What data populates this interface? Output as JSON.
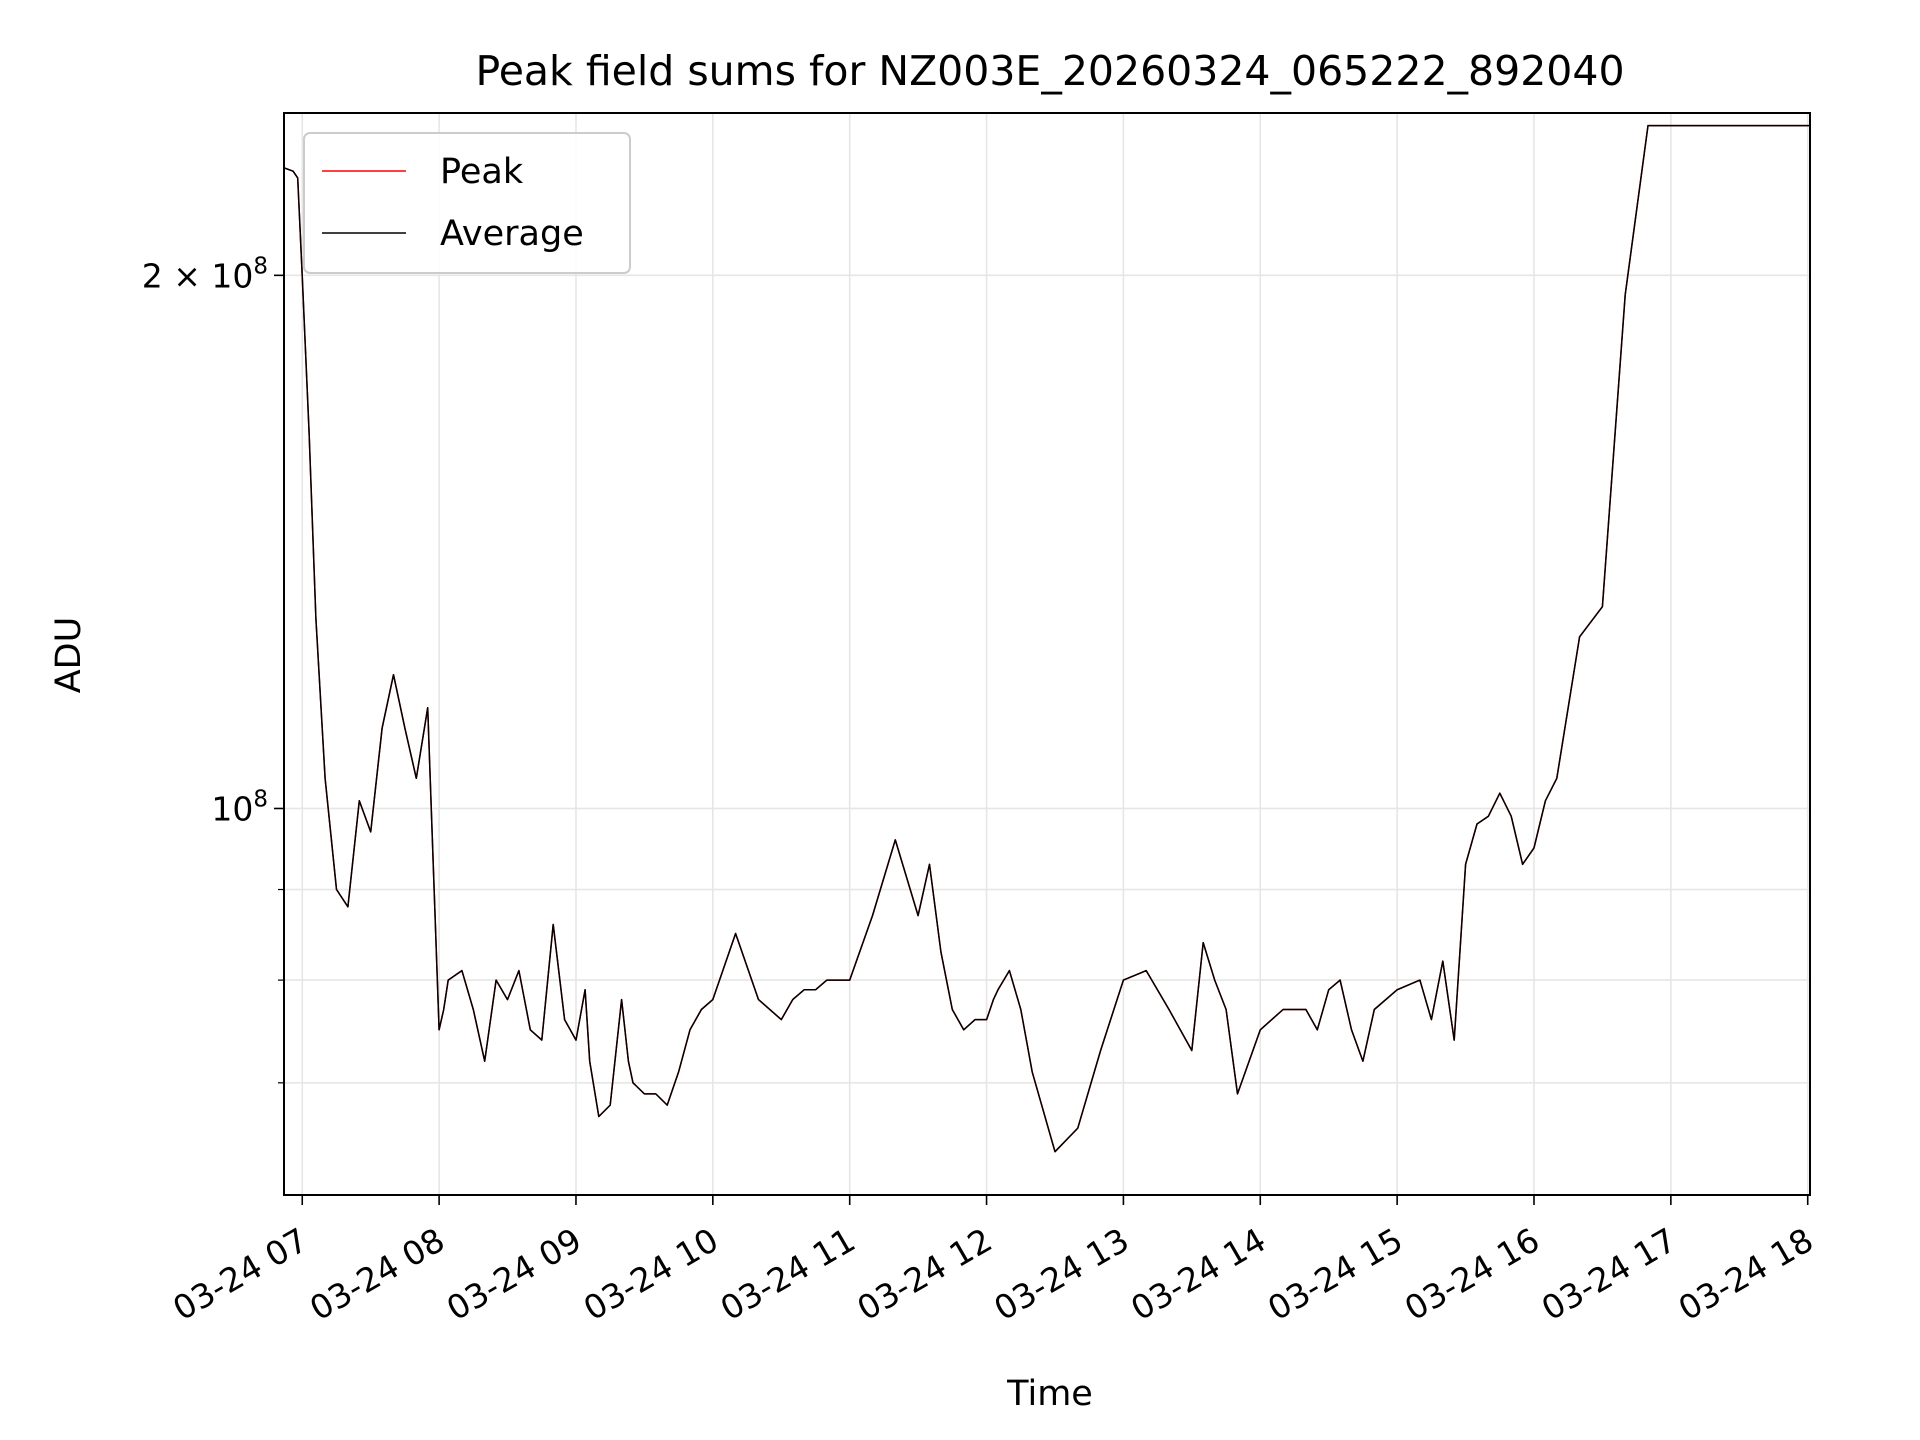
{
  "chart_data": {
    "type": "line",
    "title": "Peak field sums for NZ003E_20260324_065222_892040",
    "xlabel": "Time",
    "ylabel": "ADU",
    "y_scale": "log",
    "ylim": [
      60500000,
      247000000
    ],
    "y_major_ticks": [
      {
        "value": 100000000,
        "label_base": "10",
        "label_exp": "8"
      },
      {
        "value": 200000000,
        "label_base": "2 × 10",
        "label_exp": "8"
      }
    ],
    "y_minor_ticks": [
      70000000,
      80000000,
      90000000
    ],
    "x_date": "2026-03-24",
    "xlim": [
      "06:52",
      "18:01"
    ],
    "x_ticks": [
      {
        "time": "07:00",
        "label": "03-24 07"
      },
      {
        "time": "08:00",
        "label": "03-24 08"
      },
      {
        "time": "09:00",
        "label": "03-24 09"
      },
      {
        "time": "10:00",
        "label": "03-24 10"
      },
      {
        "time": "11:00",
        "label": "03-24 11"
      },
      {
        "time": "12:00",
        "label": "03-24 12"
      },
      {
        "time": "13:00",
        "label": "03-24 13"
      },
      {
        "time": "14:00",
        "label": "03-24 14"
      },
      {
        "time": "15:00",
        "label": "03-24 15"
      },
      {
        "time": "16:00",
        "label": "03-24 16"
      },
      {
        "time": "17:00",
        "label": "03-24 17"
      },
      {
        "time": "18:00",
        "label": "03-24 18"
      }
    ],
    "grid": true,
    "legend_position": "upper-left",
    "x": [
      "06:52",
      "06:56",
      "06:58",
      "07:00",
      "07:03",
      "07:06",
      "07:10",
      "07:15",
      "07:20",
      "07:25",
      "07:30",
      "07:35",
      "07:40",
      "07:45",
      "07:50",
      "07:55",
      "08:00",
      "08:02",
      "08:04",
      "08:10",
      "08:15",
      "08:20",
      "08:25",
      "08:30",
      "08:35",
      "08:40",
      "08:45",
      "08:50",
      "08:55",
      "09:00",
      "09:04",
      "09:06",
      "09:10",
      "09:15",
      "09:20",
      "09:23",
      "09:25",
      "09:30",
      "09:35",
      "09:40",
      "09:45",
      "09:50",
      "09:55",
      "10:00",
      "10:10",
      "10:20",
      "10:30",
      "10:35",
      "10:40",
      "10:45",
      "10:50",
      "10:55",
      "11:00",
      "11:10",
      "11:20",
      "11:30",
      "11:35",
      "11:40",
      "11:45",
      "11:50",
      "11:55",
      "12:00",
      "12:03",
      "12:05",
      "12:10",
      "12:15",
      "12:20",
      "12:30",
      "12:40",
      "12:50",
      "13:00",
      "13:10",
      "13:20",
      "13:30",
      "13:35",
      "13:40",
      "13:45",
      "13:50",
      "14:00",
      "14:10",
      "14:20",
      "14:25",
      "14:30",
      "14:35",
      "14:40",
      "14:45",
      "14:50",
      "15:00",
      "15:10",
      "15:15",
      "15:20",
      "15:25",
      "15:30",
      "15:35",
      "15:40",
      "15:45",
      "15:50",
      "15:55",
      "16:00",
      "16:05",
      "16:10",
      "16:20",
      "16:30",
      "16:40",
      "16:50",
      "17:00",
      "17:05",
      "17:10",
      "17:15",
      "17:20",
      "17:25",
      "17:30",
      "17:35",
      "17:40",
      "17:42",
      "17:45",
      "17:48",
      "17:50",
      "17:53",
      "17:56",
      "18:01"
    ],
    "series": [
      {
        "name": "Peak",
        "color": "#ff0000",
        "values": [
          230000000,
          229000000,
          227000000,
          200000000,
          163000000,
          128000000,
          104000000,
          90000000,
          88000000,
          101000000,
          97000000,
          111000000,
          119000000,
          111000000,
          104000000,
          114000000,
          75000000,
          77000000,
          80000000,
          81000000,
          77000000,
          72000000,
          80000000,
          78000000,
          81000000,
          75000000,
          74000000,
          86000000,
          76000000,
          74000000,
          79000000,
          72000000,
          67000000,
          68000000,
          78000000,
          72000000,
          70000000,
          69000000,
          69000000,
          68000000,
          71000000,
          75000000,
          77000000,
          78000000,
          85000000,
          78000000,
          76000000,
          78000000,
          79000000,
          79000000,
          80000000,
          80000000,
          80000000,
          87000000,
          96000000,
          87000000,
          93000000,
          83000000,
          77000000,
          75000000,
          76000000,
          76000000,
          78000000,
          79000000,
          81000000,
          77000000,
          71000000,
          64000000,
          66000000,
          73000000,
          80000000,
          81000000,
          77000000,
          73000000,
          84000000,
          80000000,
          77000000,
          69000000,
          75000000,
          77000000,
          77000000,
          75000000,
          79000000,
          80000000,
          75000000,
          72000000,
          77000000,
          79000000,
          80000000,
          76000000,
          82000000,
          74000000,
          93000000,
          98000000,
          99000000,
          102000000,
          99000000,
          93000000,
          95000000,
          101000000,
          104000000,
          125000000,
          130000000,
          195000000,
          243000000,
          243000000,
          243000000,
          243000000,
          243000000,
          243000000,
          243000000,
          243000000,
          243000000,
          243000000,
          243000000,
          243000000,
          243000000,
          243000000,
          243000000,
          243000000,
          243000000
        ]
      },
      {
        "name": "Average",
        "color": "#000000",
        "values": [
          230000000,
          229000000,
          227000000,
          200000000,
          163000000,
          128000000,
          104000000,
          90000000,
          88000000,
          101000000,
          97000000,
          111000000,
          119000000,
          111000000,
          104000000,
          114000000,
          75000000,
          77000000,
          80000000,
          81000000,
          77000000,
          72000000,
          80000000,
          78000000,
          81000000,
          75000000,
          74000000,
          86000000,
          76000000,
          74000000,
          79000000,
          72000000,
          67000000,
          68000000,
          78000000,
          72000000,
          70000000,
          69000000,
          69000000,
          68000000,
          71000000,
          75000000,
          77000000,
          78000000,
          85000000,
          78000000,
          76000000,
          78000000,
          79000000,
          79000000,
          80000000,
          80000000,
          80000000,
          87000000,
          96000000,
          87000000,
          93000000,
          83000000,
          77000000,
          75000000,
          76000000,
          76000000,
          78000000,
          79000000,
          81000000,
          77000000,
          71000000,
          64000000,
          66000000,
          73000000,
          80000000,
          81000000,
          77000000,
          73000000,
          84000000,
          80000000,
          77000000,
          69000000,
          75000000,
          77000000,
          77000000,
          75000000,
          79000000,
          80000000,
          75000000,
          72000000,
          77000000,
          79000000,
          80000000,
          76000000,
          82000000,
          74000000,
          93000000,
          98000000,
          99000000,
          102000000,
          99000000,
          93000000,
          95000000,
          101000000,
          104000000,
          125000000,
          130000000,
          195000000,
          243000000,
          243000000,
          243000000,
          243000000,
          243000000,
          243000000,
          243000000,
          243000000,
          243000000,
          243000000,
          243000000,
          243000000,
          243000000,
          243000000,
          243000000,
          243000000,
          243000000
        ]
      }
    ]
  }
}
